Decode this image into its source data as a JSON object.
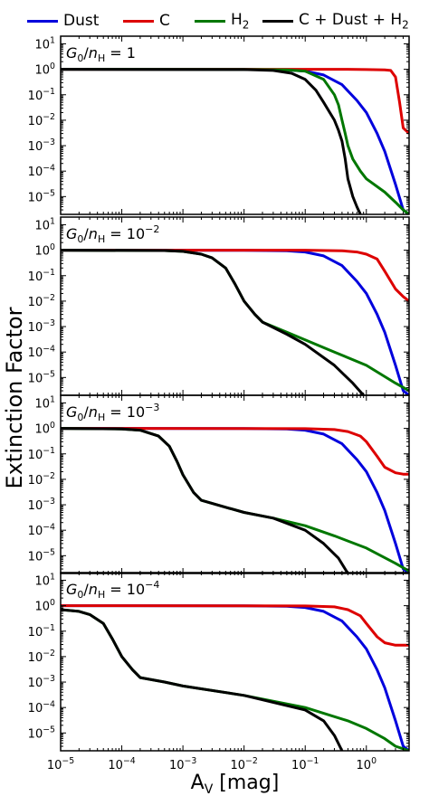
{
  "legend": [
    {
      "label": "Dust",
      "color": "#0000dd"
    },
    {
      "label": "C",
      "color": "#dd0000"
    },
    {
      "label": "H2",
      "color": "#007700"
    },
    {
      "label": "C + Dust + H2",
      "color": "#000000"
    }
  ],
  "chart_data": {
    "type": "line",
    "xlabel": "A_V [mag]",
    "ylabel": "Extinction Factor",
    "xscale": "log",
    "yscale": "log",
    "xlim": [
      1e-05,
      5
    ],
    "ylim": [
      2e-06,
      20
    ],
    "grid": false,
    "legend_position": "top",
    "x_ticks": [
      "10^-5",
      "10^-4",
      "10^-3",
      "10^-2",
      "10^-1",
      "10^0"
    ],
    "y_ticks": [
      "10^1",
      "10^0",
      "10^-1",
      "10^-2",
      "10^-3",
      "10^-4",
      "10^-5"
    ],
    "panels": [
      {
        "title": "G0/nH = 1",
        "series": [
          {
            "name": "Dust",
            "color": "#0000dd",
            "x": [
              1e-05,
              0.01,
              0.05,
              0.1,
              0.2,
              0.4,
              0.7,
              1.0,
              1.5,
              2.0,
              3.0,
              4.0,
              5.0
            ],
            "y": [
              1,
              0.99,
              0.95,
              0.85,
              0.6,
              0.25,
              0.06,
              0.02,
              0.003,
              0.0006,
              3e-05,
              3e-06,
              2e-06
            ]
          },
          {
            "name": "C",
            "color": "#dd0000",
            "x": [
              1e-05,
              0.5,
              1.0,
              2.0,
              2.5,
              3.0,
              3.5,
              4.0,
              5.0
            ],
            "y": [
              1,
              1,
              0.98,
              0.95,
              0.9,
              0.5,
              0.05,
              0.005,
              0.003
            ]
          },
          {
            "name": "H2",
            "color": "#007700",
            "x": [
              1e-05,
              0.01,
              0.05,
              0.1,
              0.2,
              0.3,
              0.35,
              0.4,
              0.45,
              0.5,
              0.6,
              0.8,
              1.0,
              2.0,
              3.0,
              4.0,
              5.0
            ],
            "y": [
              1,
              0.99,
              0.95,
              0.85,
              0.4,
              0.1,
              0.04,
              0.01,
              0.003,
              0.001,
              0.0003,
              0.0001,
              5e-05,
              1.5e-05,
              6e-06,
              3e-06,
              2e-06
            ]
          },
          {
            "name": "C + Dust + H2",
            "color": "#000000",
            "x": [
              1e-05,
              0.01,
              0.03,
              0.06,
              0.1,
              0.15,
              0.2,
              0.3,
              0.35,
              0.4,
              0.45,
              0.5,
              0.6,
              0.7,
              0.8
            ],
            "y": [
              1,
              0.98,
              0.9,
              0.7,
              0.4,
              0.15,
              0.05,
              0.01,
              0.004,
              0.0015,
              0.0003,
              5e-05,
              1e-05,
              4e-06,
              2e-06
            ]
          }
        ]
      },
      {
        "title": "G0/nH = 10^-2",
        "series": [
          {
            "name": "Dust",
            "color": "#0000dd",
            "x": [
              1e-05,
              0.01,
              0.05,
              0.1,
              0.2,
              0.4,
              0.7,
              1.0,
              1.5,
              2.0,
              3.0,
              4.0,
              5.0
            ],
            "y": [
              1,
              0.99,
              0.95,
              0.85,
              0.6,
              0.25,
              0.06,
              0.02,
              0.003,
              0.0006,
              3e-05,
              3e-06,
              2e-06
            ]
          },
          {
            "name": "C",
            "color": "#dd0000",
            "x": [
              1e-05,
              0.1,
              0.4,
              0.7,
              1.0,
              1.5,
              2.0,
              3.0,
              4.0,
              5.0
            ],
            "y": [
              1,
              1,
              0.95,
              0.85,
              0.7,
              0.45,
              0.15,
              0.03,
              0.015,
              0.01
            ]
          },
          {
            "name": "H2",
            "color": "#007700",
            "x": [
              1e-05,
              0.0005,
              0.001,
              0.002,
              0.003,
              0.005,
              0.007,
              0.01,
              0.015,
              0.02,
              0.05,
              0.1,
              0.3,
              1.0,
              3.0,
              5.0
            ],
            "y": [
              1,
              0.97,
              0.9,
              0.7,
              0.5,
              0.2,
              0.05,
              0.01,
              0.003,
              0.0015,
              0.0006,
              0.0003,
              0.0001,
              3e-05,
              6e-06,
              3e-06
            ]
          },
          {
            "name": "C + Dust + H2",
            "color": "#000000",
            "x": [
              1e-05,
              0.0005,
              0.001,
              0.002,
              0.003,
              0.005,
              0.007,
              0.01,
              0.015,
              0.02,
              0.05,
              0.1,
              0.3,
              0.6,
              0.9
            ],
            "y": [
              1,
              0.97,
              0.9,
              0.7,
              0.5,
              0.2,
              0.05,
              0.01,
              0.003,
              0.0015,
              0.0005,
              0.0002,
              3e-05,
              6e-06,
              2e-06
            ]
          }
        ]
      },
      {
        "title": "G0/nH = 10^-3",
        "series": [
          {
            "name": "Dust",
            "color": "#0000dd",
            "x": [
              1e-05,
              0.01,
              0.05,
              0.1,
              0.2,
              0.4,
              0.7,
              1.0,
              1.5,
              2.0,
              3.0,
              4.0,
              5.0
            ],
            "y": [
              1,
              0.99,
              0.95,
              0.85,
              0.6,
              0.25,
              0.06,
              0.02,
              0.003,
              0.0006,
              3e-05,
              3e-06,
              2e-06
            ]
          },
          {
            "name": "C",
            "color": "#dd0000",
            "x": [
              1e-05,
              0.1,
              0.3,
              0.5,
              0.8,
              1.0,
              1.5,
              2.0,
              3.0,
              4.0,
              5.0
            ],
            "y": [
              1,
              0.98,
              0.9,
              0.75,
              0.5,
              0.3,
              0.08,
              0.03,
              0.018,
              0.016,
              0.016
            ]
          },
          {
            "name": "H2",
            "color": "#007700",
            "x": [
              1e-05,
              0.0001,
              0.0002,
              0.0004,
              0.0006,
              0.0008,
              0.001,
              0.0015,
              0.002,
              0.005,
              0.01,
              0.03,
              0.1,
              0.3,
              1.0,
              3.0,
              5.0
            ],
            "y": [
              1,
              0.95,
              0.85,
              0.5,
              0.2,
              0.05,
              0.015,
              0.003,
              0.0015,
              0.0008,
              0.0005,
              0.0003,
              0.00015,
              6e-05,
              2e-05,
              5e-06,
              2.5e-06
            ]
          },
          {
            "name": "C + Dust + H2",
            "color": "#000000",
            "x": [
              1e-05,
              0.0001,
              0.0002,
              0.0004,
              0.0006,
              0.0008,
              0.001,
              0.0015,
              0.002,
              0.005,
              0.01,
              0.03,
              0.1,
              0.2,
              0.35,
              0.5
            ],
            "y": [
              1,
              0.95,
              0.85,
              0.5,
              0.2,
              0.05,
              0.015,
              0.003,
              0.0015,
              0.0008,
              0.0005,
              0.0003,
              0.0001,
              3e-05,
              8e-06,
              2e-06
            ]
          }
        ]
      },
      {
        "title": "G0/nH = 10^-4",
        "series": [
          {
            "name": "Dust",
            "color": "#0000dd",
            "x": [
              1e-05,
              0.01,
              0.05,
              0.1,
              0.2,
              0.4,
              0.7,
              1.0,
              1.5,
              2.0,
              3.0,
              4.0,
              5.0
            ],
            "y": [
              1,
              0.99,
              0.95,
              0.85,
              0.6,
              0.25,
              0.06,
              0.02,
              0.003,
              0.0006,
              3e-05,
              3e-06,
              2e-06
            ]
          },
          {
            "name": "C",
            "color": "#dd0000",
            "x": [
              1e-05,
              0.1,
              0.3,
              0.5,
              0.8,
              1.0,
              1.5,
              2.0,
              3.0,
              5.0
            ],
            "y": [
              1,
              0.98,
              0.9,
              0.7,
              0.4,
              0.2,
              0.06,
              0.035,
              0.028,
              0.028
            ]
          },
          {
            "name": "H2",
            "color": "#007700",
            "x": [
              1e-05,
              2e-05,
              3e-05,
              5e-05,
              7e-05,
              0.0001,
              0.00015,
              0.0002,
              0.0005,
              0.001,
              0.01,
              0.1,
              0.5,
              1.0,
              2.0,
              3.0,
              5.0
            ],
            "y": [
              0.7,
              0.6,
              0.45,
              0.2,
              0.05,
              0.01,
              0.003,
              0.0015,
              0.001,
              0.0007,
              0.0003,
              0.0001,
              3e-05,
              1.5e-05,
              6e-06,
              3e-06,
              2e-06
            ]
          },
          {
            "name": "C + Dust + H2",
            "color": "#000000",
            "x": [
              1e-05,
              2e-05,
              3e-05,
              5e-05,
              7e-05,
              0.0001,
              0.00015,
              0.0002,
              0.0005,
              0.001,
              0.01,
              0.1,
              0.2,
              0.3,
              0.4
            ],
            "y": [
              0.7,
              0.6,
              0.45,
              0.2,
              0.05,
              0.01,
              0.003,
              0.0015,
              0.001,
              0.0007,
              0.0003,
              8e-05,
              3e-05,
              8e-06,
              2e-06
            ]
          }
        ]
      }
    ]
  }
}
